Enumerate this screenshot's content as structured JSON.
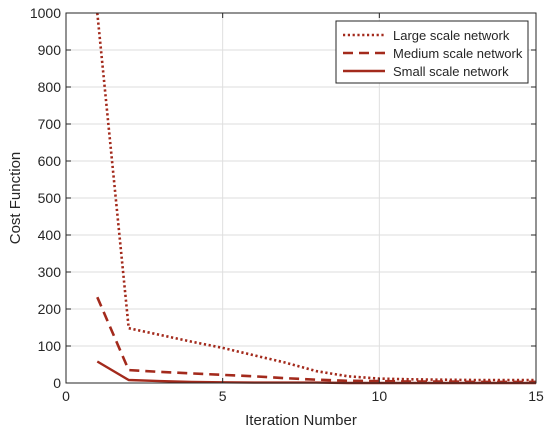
{
  "chart_data": {
    "type": "line",
    "xlabel": "Iteration Number",
    "ylabel": "Cost Function",
    "xlim": [
      0,
      15
    ],
    "ylim": [
      0,
      1000
    ],
    "xticks": [
      0,
      5,
      10,
      15
    ],
    "yticks": [
      0,
      100,
      200,
      300,
      400,
      500,
      600,
      700,
      800,
      900,
      1000
    ],
    "grid": true,
    "legend_position": "top-right",
    "series": [
      {
        "name": "Large scale network",
        "style": "dotted",
        "color": "#a32a1c",
        "x": [
          1,
          2,
          3,
          4,
          5,
          6,
          7,
          8,
          9,
          10,
          11,
          12,
          13,
          14,
          15
        ],
        "y": [
          1000,
          148,
          130,
          112,
          95,
          75,
          55,
          32,
          18,
          12,
          10,
          9,
          8,
          8,
          8
        ]
      },
      {
        "name": "Medium scale network",
        "style": "dashed",
        "color": "#a32a1c",
        "x": [
          1,
          2,
          3,
          4,
          5,
          6,
          7,
          8,
          9,
          10,
          11,
          12,
          13,
          14,
          15
        ],
        "y": [
          232,
          35,
          30,
          26,
          22,
          18,
          13,
          9,
          6,
          5,
          4,
          4,
          3,
          3,
          3
        ]
      },
      {
        "name": "Small scale network",
        "style": "solid",
        "color": "#a32a1c",
        "x": [
          1,
          2,
          3,
          4,
          5,
          6,
          7,
          8,
          9,
          10,
          11,
          12,
          13,
          14,
          15
        ],
        "y": [
          58,
          8,
          5,
          3,
          2,
          1,
          1,
          1,
          0,
          0,
          0,
          0,
          0,
          0,
          0
        ]
      }
    ]
  }
}
